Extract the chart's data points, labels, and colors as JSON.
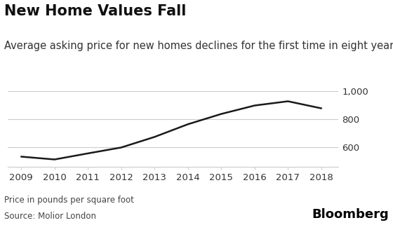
{
  "title": "New Home Values Fall",
  "subtitle": "Average asking price for new homes declines for the first time in eight years",
  "footer_line1": "Price in pounds per square foot",
  "footer_line2": "Source: Molior London",
  "branding": "Bloomberg",
  "x": [
    2009,
    2010,
    2011,
    2012,
    2013,
    2014,
    2015,
    2016,
    2017,
    2018
  ],
  "y": [
    535,
    515,
    558,
    600,
    675,
    765,
    838,
    898,
    928,
    878
  ],
  "line_color": "#1a1a1a",
  "line_width": 1.8,
  "ylim": [
    465,
    1040
  ],
  "yticks": [
    600,
    800,
    1000
  ],
  "ytick_labels": [
    "600",
    "800",
    "1,000"
  ],
  "xlim": [
    2008.6,
    2018.5
  ],
  "bg_color": "#ffffff",
  "grid_color": "#cccccc",
  "title_fontsize": 15,
  "subtitle_fontsize": 10.5,
  "tick_fontsize": 9.5,
  "footer_fontsize": 8.5,
  "brand_fontsize": 13
}
